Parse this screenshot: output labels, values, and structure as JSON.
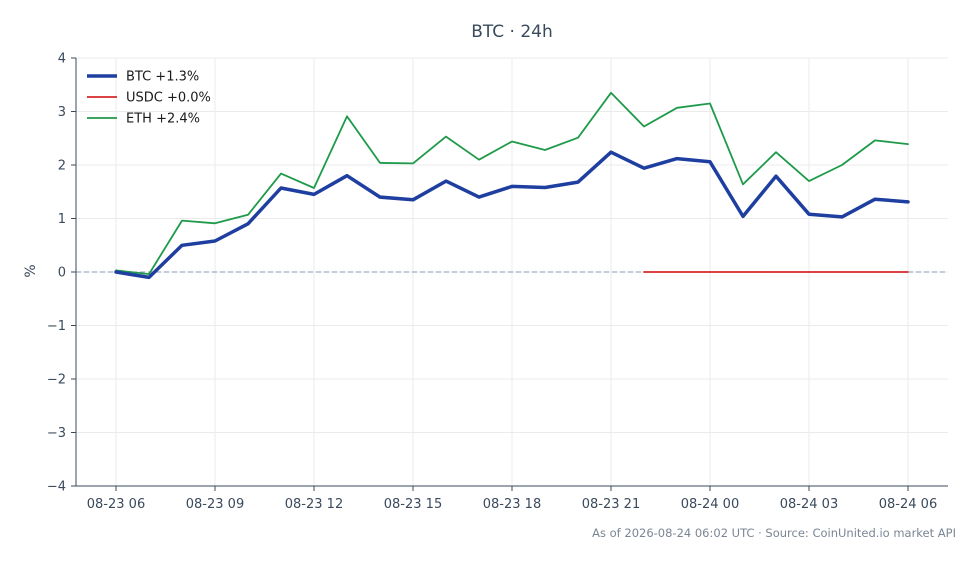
{
  "chart_data": {
    "type": "line",
    "title": "BTC · 24h",
    "xlabel": "",
    "ylabel": "%",
    "ylim": [
      -4,
      4
    ],
    "yticks": [
      4,
      3,
      2,
      1,
      0,
      -1,
      -2,
      -3,
      -4
    ],
    "ytick_labels": [
      "4",
      "3",
      "2",
      "1",
      "0",
      "−1",
      "−2",
      "−3",
      "−4"
    ],
    "x": [
      "08-23 06",
      "08-23 07",
      "08-23 08",
      "08-23 09",
      "08-23 10",
      "08-23 11",
      "08-23 12",
      "08-23 13",
      "08-23 14",
      "08-23 15",
      "08-23 16",
      "08-23 17",
      "08-23 18",
      "08-23 19",
      "08-23 20",
      "08-23 21",
      "08-23 22",
      "08-23 23",
      "08-24 00",
      "08-24 01",
      "08-24 02",
      "08-24 03",
      "08-24 04",
      "08-24 05",
      "08-24 06"
    ],
    "xticks": [
      "08-23 06",
      "08-23 09",
      "08-23 12",
      "08-23 15",
      "08-23 18",
      "08-23 21",
      "08-24 00",
      "08-24 03",
      "08-24 06"
    ],
    "grid": true,
    "legend_position": "top-left",
    "reference_line": {
      "y": 0,
      "style": "dashed",
      "color": "#8a9bb8"
    },
    "series": [
      {
        "name": "BTC +1.3%",
        "color": "#1f3fa0",
        "width": 3.5,
        "values": [
          0.0,
          -0.1,
          0.5,
          0.58,
          0.9,
          1.57,
          1.45,
          1.8,
          1.4,
          1.35,
          1.7,
          1.4,
          1.6,
          1.58,
          1.68,
          2.24,
          1.94,
          2.12,
          2.06,
          1.04,
          1.79,
          1.08,
          1.03,
          1.36,
          1.31
        ]
      },
      {
        "name": "USDC +0.0%",
        "color": "#d62728",
        "width": 1.8,
        "values": [
          null,
          null,
          null,
          null,
          null,
          null,
          null,
          null,
          null,
          null,
          null,
          null,
          null,
          null,
          null,
          null,
          0.0,
          0.0,
          0.0,
          0.0,
          0.0,
          0.0,
          0.0,
          0.0,
          0.0
        ]
      },
      {
        "name": "ETH +2.4%",
        "color": "#1e9a4a",
        "width": 1.8,
        "values": [
          0.03,
          -0.04,
          0.96,
          0.91,
          1.07,
          1.84,
          1.57,
          2.91,
          2.04,
          2.03,
          2.53,
          2.1,
          2.44,
          2.28,
          2.51,
          3.35,
          2.72,
          3.07,
          3.15,
          1.64,
          2.24,
          1.7,
          2.0,
          2.46,
          2.39
        ]
      }
    ],
    "footer": "As of 2026-08-24 06:02 UTC · Source: CoinUnited.io market API"
  }
}
